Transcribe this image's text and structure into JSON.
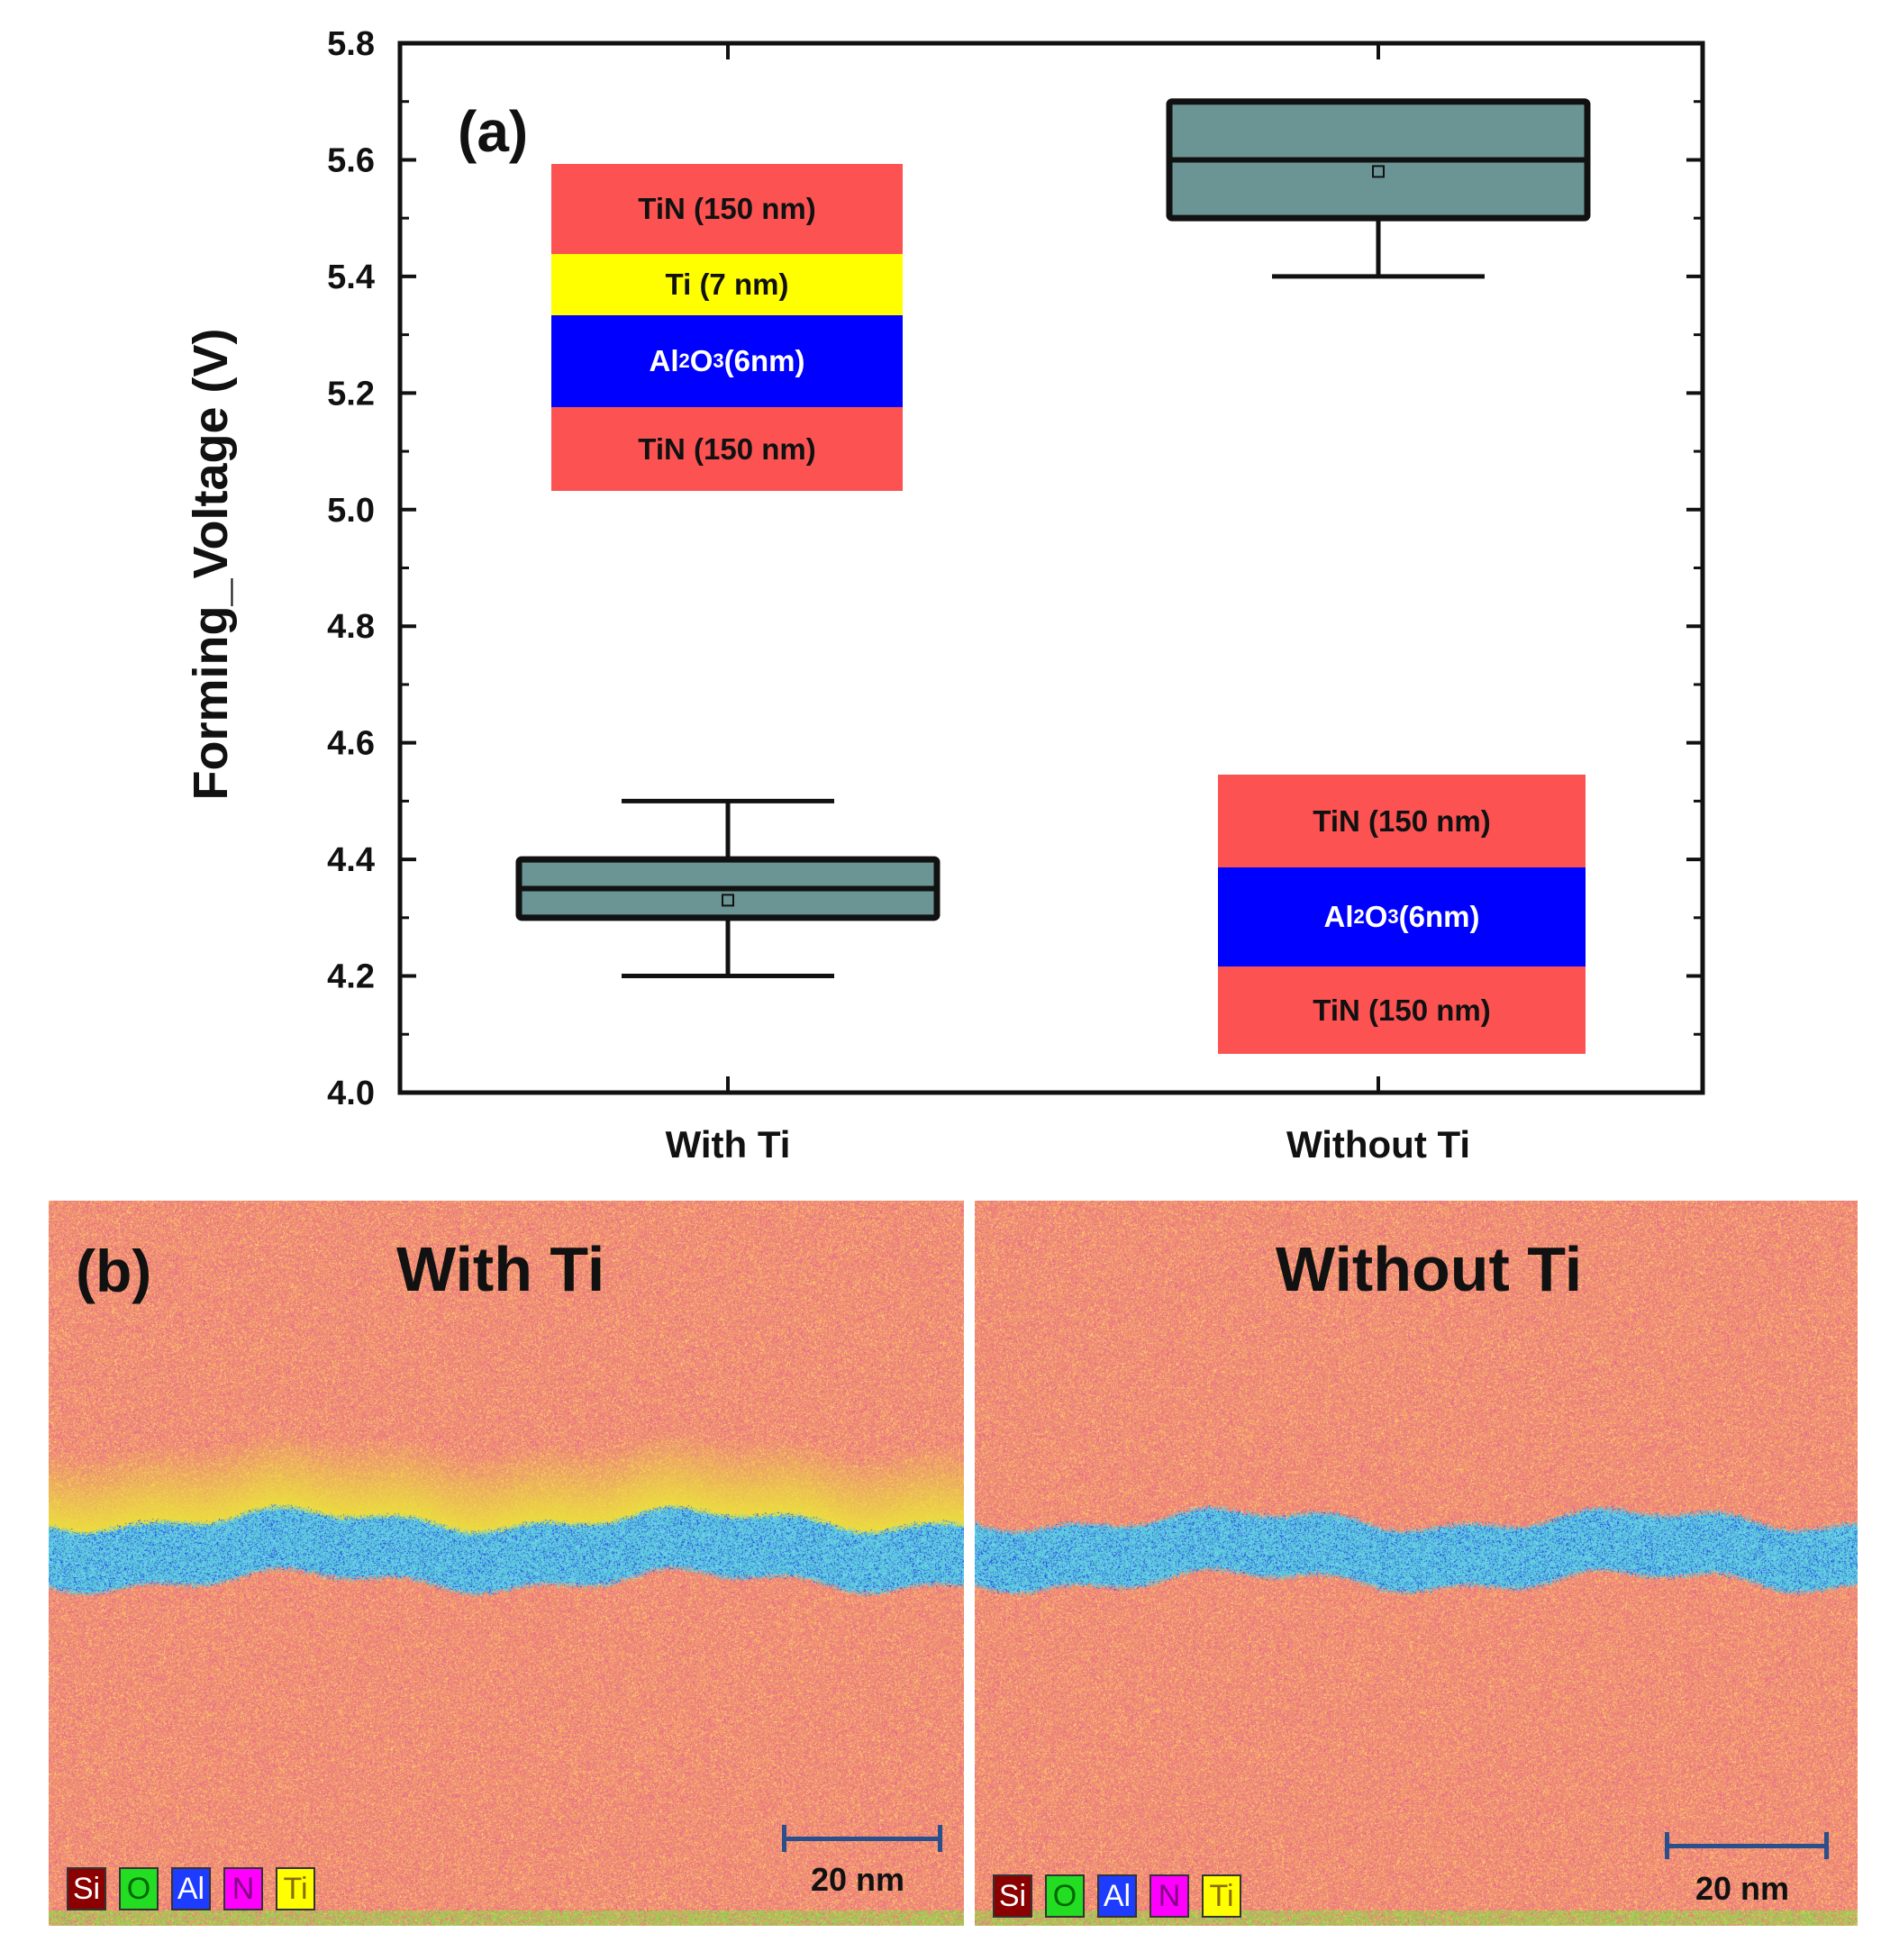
{
  "chart_data": {
    "type": "box",
    "panel_label": "(a)",
    "ylabel": "Forming_Voltage (V)",
    "xlabel": "",
    "ylim": [
      4.0,
      5.8
    ],
    "yticks": [
      "4.0",
      "4.2",
      "4.4",
      "4.6",
      "4.8",
      "5.0",
      "5.2",
      "5.4",
      "5.6",
      "5.8"
    ],
    "categories": [
      "With Ti",
      "Without Ti"
    ],
    "boxes": [
      {
        "category": "With Ti",
        "whisker_low": 4.2,
        "q1": 4.3,
        "median": 4.35,
        "q3": 4.4,
        "whisker_high": 4.5,
        "mean": 4.33
      },
      {
        "category": "Without Ti",
        "whisker_low": 5.4,
        "q1": 5.5,
        "median": 5.6,
        "q3": 5.7,
        "whisker_high": 5.7,
        "mean": 5.58
      }
    ],
    "box_color": "#6a9594",
    "stack_with_ti": [
      {
        "label": "TiN (150 nm)",
        "color": "#fd5252"
      },
      {
        "label": "Ti (7 nm)",
        "color": "#ffff00"
      },
      {
        "label": "Al2O3 (6nm)",
        "color": "#0000ff"
      },
      {
        "label": "TiN (150 nm)",
        "color": "#fd5252"
      }
    ],
    "stack_without_ti": [
      {
        "label": "TiN (150 nm)",
        "color": "#fd5252"
      },
      {
        "label": "Al2O3 (6nm)",
        "color": "#0000ff"
      },
      {
        "label": "TiN (150 nm)",
        "color": "#fd5252"
      }
    ]
  },
  "panel_b": {
    "label": "(b)",
    "maps": [
      {
        "title": "With Ti",
        "scale": "20 nm"
      },
      {
        "title": "Without Ti",
        "scale": "20 nm"
      }
    ],
    "legend": [
      {
        "symbol": "Si",
        "color": "#8b0000",
        "text_color": "#ffffff"
      },
      {
        "symbol": "O",
        "color": "#22dd22",
        "text_color": "#006600"
      },
      {
        "symbol": "Al",
        "color": "#1e3cff",
        "text_color": "#ffffff"
      },
      {
        "symbol": "N",
        "color": "#ff00ff",
        "text_color": "#800080"
      },
      {
        "symbol": "Ti",
        "color": "#ffff00",
        "text_color": "#8a6d00"
      }
    ]
  }
}
